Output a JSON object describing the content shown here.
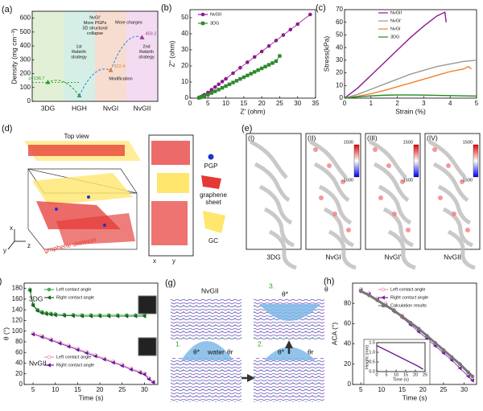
{
  "chart_data": [
    {
      "panel_label": "(a)",
      "type": "scatter",
      "ylabel": "Density (mg cm⁻³)",
      "categories": [
        "3DG",
        "HGH",
        "NvGI",
        "NvGII"
      ],
      "values": [
        136.7,
        40,
        222.4,
        459.2
      ],
      "value_labels": [
        "ρ=136.7",
        null,
        "222.4",
        "459.2"
      ],
      "band_colors": [
        "#e2f1d6",
        "#d6efe6",
        "#f7ddd0",
        "#f3dcf1"
      ],
      "point_colors": [
        "#2e9b2e",
        "#3a9a7a",
        "#e07b2a",
        "#9b3a9b"
      ],
      "ylim": [
        0,
        650
      ],
      "yticks": [
        0,
        100,
        200,
        300,
        400,
        500,
        600
      ],
      "annotations": [
        {
          "lines": [
            "1st",
            "Rebirth",
            "strategy"
          ]
        },
        {
          "lines": [
            "NvGI'",
            "More PGPs",
            "3D structural",
            "collapse"
          ]
        },
        {
          "lines": [
            "Modification"
          ]
        },
        {
          "lines": [
            "More charges"
          ]
        },
        {
          "lines": [
            "2nd",
            "Rebirth",
            "strategy"
          ]
        }
      ]
    },
    {
      "panel_label": "(b)",
      "type": "scatter",
      "xlabel": "Z' (ohm)",
      "ylabel": "Z'' (ohm)",
      "xlim": [
        0,
        35
      ],
      "xticks": [
        0,
        5,
        10,
        15,
        20,
        25,
        30,
        35
      ],
      "ylim": [
        0,
        55
      ],
      "yticks": [
        0,
        10,
        20,
        30,
        40,
        50
      ],
      "legend": "upper left",
      "series": [
        {
          "name": "NvGII",
          "color": "#8b1a8b",
          "marker": "circle",
          "connected": true,
          "x": [
            2.5,
            3,
            3.5,
            4,
            5,
            6,
            7,
            8,
            9,
            10,
            12,
            14,
            16,
            18,
            20,
            22,
            24,
            26,
            28,
            30,
            33.5
          ],
          "values": [
            0.3,
            0.8,
            1.4,
            2.1,
            3.5,
            5.2,
            6.9,
            8.6,
            10.3,
            12,
            15.5,
            18.9,
            22.3,
            25.6,
            29,
            32.4,
            35.8,
            39.2,
            42.6,
            46,
            52
          ]
        },
        {
          "name": "3DG",
          "color": "#2e8b2e",
          "marker": "square",
          "connected": true,
          "x": [
            2.5,
            3,
            3.5,
            4,
            5,
            6,
            7,
            8,
            9,
            10,
            11,
            12,
            13,
            14,
            15,
            16,
            17,
            18,
            19,
            20,
            21,
            22,
            23,
            24,
            25
          ],
          "values": [
            0.2,
            0.5,
            0.9,
            1.3,
            2.2,
            3.2,
            4.2,
            5.3,
            6.4,
            7.5,
            8.6,
            9.7,
            10.8,
            11.9,
            13,
            14.1,
            15.2,
            16.3,
            17.4,
            18.5,
            19.6,
            20.7,
            21.8,
            23,
            26.2
          ]
        }
      ]
    },
    {
      "panel_label": "(c)",
      "type": "line",
      "xlabel": "Strain (%)",
      "ylabel": "Stress(kPa)",
      "xlim": [
        0,
        5
      ],
      "xticks": [
        0,
        1,
        2,
        3,
        4,
        5
      ],
      "ylim": [
        0,
        70
      ],
      "yticks": [
        0,
        10,
        20,
        30,
        40,
        50,
        60,
        70
      ],
      "legend": "upper left",
      "series": [
        {
          "name": "NvGII",
          "color": "#8b1a8b",
          "x": [
            0,
            0.5,
            1,
            1.5,
            2,
            2.5,
            3,
            3.5,
            3.8,
            3.85
          ],
          "values": [
            0,
            8,
            18,
            28,
            38,
            48,
            57,
            65,
            68,
            60
          ]
        },
        {
          "name": "NvGI'",
          "color": "#999999",
          "x": [
            0,
            0.5,
            1,
            1.5,
            2,
            2.5,
            3,
            3.5,
            4,
            4.5,
            5
          ],
          "values": [
            0,
            3,
            7,
            11,
            15,
            19,
            22,
            25,
            27,
            29,
            30
          ]
        },
        {
          "name": "NvGI",
          "color": "#f07f2a",
          "x": [
            0,
            0.5,
            1,
            1.5,
            2,
            2.5,
            3,
            3.5,
            4,
            4.5,
            4.7,
            4.8
          ],
          "values": [
            0,
            1.5,
            3.5,
            6,
            9,
            12,
            15,
            18,
            21,
            23,
            25,
            23
          ]
        },
        {
          "name": "3DG",
          "color": "#1f8a1f",
          "x": [
            0,
            0.5,
            1,
            1.5,
            2,
            2.5,
            3,
            3.5,
            4,
            4.5,
            5
          ],
          "values": [
            0,
            1,
            1.8,
            2.3,
            2.5,
            2.5,
            2.4,
            2.2,
            2,
            1.8,
            1.6
          ]
        }
      ]
    },
    {
      "panel_label": "(f)",
      "type": "scatter",
      "xlabel": "Time (s)",
      "ylabel": "θ (°)",
      "xlim": [
        3,
        33
      ],
      "xticks": [
        5,
        10,
        15,
        20,
        25,
        30
      ],
      "ylim": [
        0,
        190
      ],
      "yticks": [
        0,
        20,
        40,
        60,
        80,
        100,
        120,
        140,
        160,
        180
      ],
      "annotations": [
        {
          "lines": [
            "3DG"
          ]
        },
        {
          "lines": [
            "NvGII"
          ]
        }
      ],
      "series": [
        {
          "name": "Left contact angle",
          "color": "#4caf50",
          "marker": "circle",
          "connected": true,
          "x": [
            4.3,
            5,
            6,
            7,
            8,
            9,
            10,
            12,
            14,
            16,
            18,
            20,
            22,
            24,
            26,
            28,
            30
          ],
          "values": [
            178,
            150,
            140,
            136,
            134,
            133,
            132,
            131,
            130.5,
            130,
            130,
            130,
            130,
            130,
            130,
            130,
            130
          ]
        },
        {
          "name": "Right contact angle",
          "color": "#1b5e20",
          "marker": "triangle",
          "connected": true,
          "x": [
            4.3,
            5,
            6,
            7,
            8,
            9,
            10,
            12,
            14,
            16,
            18,
            20,
            22,
            24,
            26,
            28,
            30
          ],
          "values": [
            176,
            148,
            138,
            134,
            132,
            131,
            130,
            129,
            128.5,
            128,
            128,
            128,
            128,
            128,
            128,
            128,
            128
          ]
        },
        {
          "name": "Left contact angle",
          "color": "#f48fb1",
          "marker": "circle",
          "connected": true,
          "x": [
            5,
            7,
            9,
            11,
            13,
            15,
            17,
            19,
            21,
            23,
            25,
            27,
            29,
            30,
            31,
            32
          ],
          "values": [
            96,
            91,
            85,
            79,
            73,
            67,
            61,
            55,
            49,
            43,
            37,
            30,
            24,
            21,
            12,
            5
          ]
        },
        {
          "name": "Right contact angle",
          "color": "#6a1b9a",
          "marker": "triangle",
          "connected": true,
          "x": [
            5,
            7,
            9,
            11,
            13,
            15,
            17,
            19,
            21,
            23,
            25,
            27,
            29,
            30,
            31,
            32
          ],
          "values": [
            94,
            89,
            83,
            77,
            71,
            65,
            59,
            53,
            47,
            41,
            35,
            28,
            22,
            19,
            10,
            4
          ]
        }
      ]
    },
    {
      "panel_label": "(h)",
      "type": "scatter",
      "xlabel": "Time (s)",
      "ylabel": "ACA (°)",
      "xlim": [
        3,
        33
      ],
      "xticks": [
        5,
        10,
        15,
        20,
        25,
        30
      ],
      "ylim": [
        0,
        100
      ],
      "yticks": [
        0,
        20,
        40,
        60,
        80
      ],
      "series": [
        {
          "name": "Left contact angle",
          "color": "#f48fb1",
          "marker": "circle",
          "connected": false,
          "x": [
            5,
            7,
            9,
            11,
            13,
            15,
            17,
            19,
            21,
            23,
            25,
            27,
            29,
            31,
            32
          ],
          "values": [
            94,
            90,
            85,
            80,
            74,
            68,
            61,
            54,
            47,
            40,
            33,
            26,
            18,
            9,
            5
          ]
        },
        {
          "name": "Right contact angle",
          "color": "#7b1fa2",
          "marker": "triangle",
          "connected": true,
          "x": [
            5,
            7,
            9,
            11,
            13,
            15,
            17,
            19,
            21,
            23,
            25,
            27,
            29,
            31,
            32
          ],
          "values": [
            93,
            89,
            84,
            78,
            72,
            66,
            59,
            52,
            45,
            38,
            31,
            24,
            16,
            8,
            4
          ]
        },
        {
          "name": "Calculation results",
          "color": "#777777",
          "marker": "circle",
          "connected": true,
          "x": [
            5,
            7,
            9,
            11,
            13,
            15,
            17,
            19,
            21,
            23,
            25,
            27,
            29,
            31,
            32
          ],
          "values": [
            92,
            88,
            83,
            78,
            73,
            67,
            61,
            55,
            48,
            41,
            34,
            27,
            20,
            12,
            8
          ]
        }
      ]
    },
    {
      "type": "line",
      "xlabel": "Time (s)",
      "ylabel": "Height (mm)",
      "xlim": [
        0,
        25
      ],
      "xticks": [
        0,
        5,
        10,
        15,
        20,
        25
      ],
      "ylim": [
        0,
        1.5
      ],
      "yticks": [
        {
          "value": 0,
          "label": "0.0"
        },
        0.5,
        {
          "value": 1,
          "label": "1.0"
        },
        1.5
      ],
      "series": [
        {
          "name": null,
          "color": "#6a1b9a",
          "x": [
            0,
            3,
            6,
            9,
            12,
            15,
            18,
            21,
            24
          ],
          "values": [
            1.35,
            1.2,
            1.05,
            0.9,
            0.75,
            0.6,
            0.45,
            0.3,
            0.12
          ]
        }
      ]
    }
  ],
  "panel_d": {
    "label": "(d)",
    "top_view": "Top view",
    "legend": [
      "PGP",
      "graphene",
      "sheet",
      "GC"
    ],
    "skeleton": "graphene skeleton",
    "axes": [
      "x",
      "y",
      "z"
    ],
    "side_axes": [
      "x",
      "y"
    ]
  },
  "panel_e": {
    "label": "(e)",
    "tiles": [
      {
        "numeral": "(I)",
        "name": "3DG"
      },
      {
        "numeral": "(II)",
        "name": "NvGI",
        "scale_max": 1500,
        "scale_min": -1500
      },
      {
        "numeral": "(III)",
        "name": "NvGI'",
        "scale_max": 1500,
        "scale_min": -1500
      },
      {
        "numeral": "(IV)",
        "name": "NvGII",
        "scale_max": 1500,
        "scale_min": -1500
      }
    ]
  },
  "panel_g": {
    "label": "(g)",
    "title": "NvGII",
    "steps": [
      "1.",
      "2.",
      "3."
    ],
    "water": "water",
    "theta_star": "θ*",
    "theta_r": "θr",
    "theta": "θ"
  }
}
